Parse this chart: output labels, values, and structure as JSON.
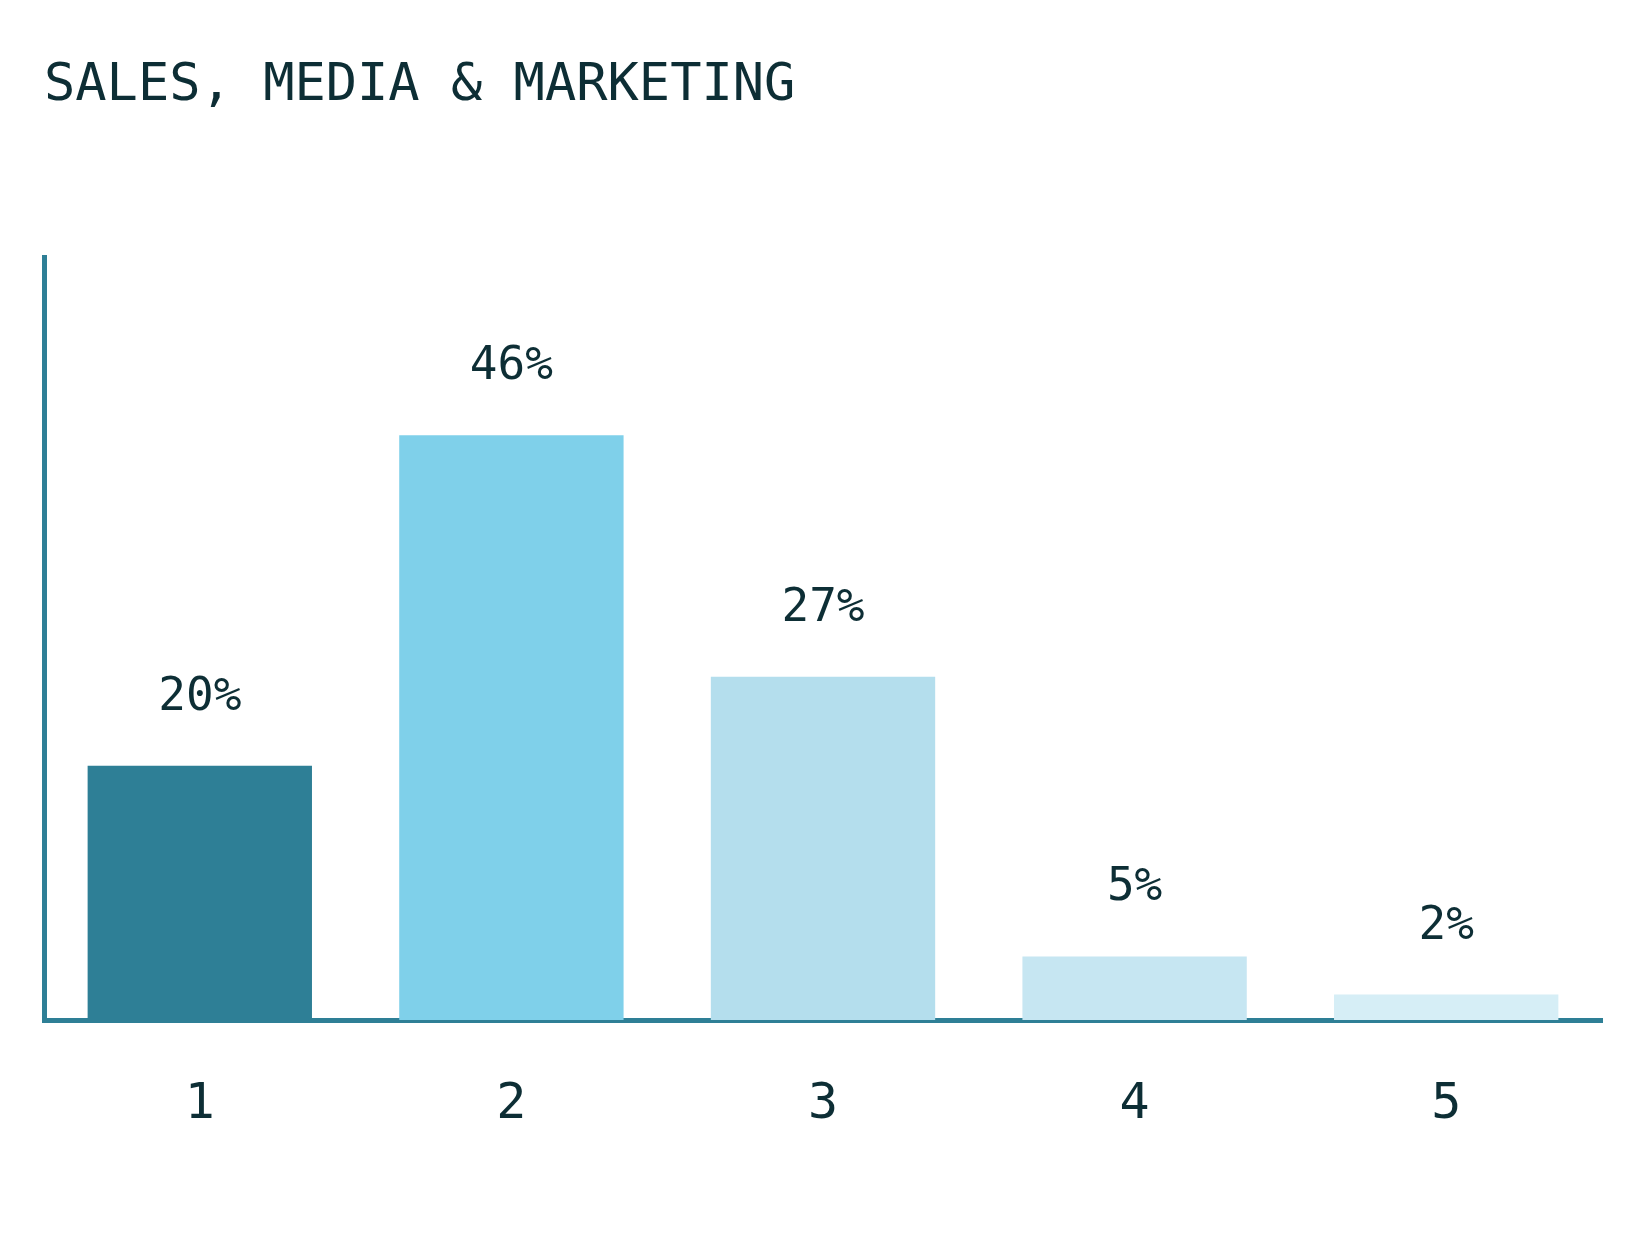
{
  "chart_data": {
    "type": "bar",
    "title": "SALES, MEDIA & MARKETING",
    "categories": [
      "1",
      "2",
      "3",
      "4",
      "5"
    ],
    "values": [
      20,
      46,
      27,
      5,
      2
    ],
    "colors": [
      "#2e7f96",
      "#7fd0ea",
      "#b4deed",
      "#c6e6f2",
      "#d6eef6"
    ],
    "value_labels": [
      "20%",
      "46%",
      "27%",
      "5%",
      "2%"
    ],
    "grid": false,
    "legend": false
  }
}
